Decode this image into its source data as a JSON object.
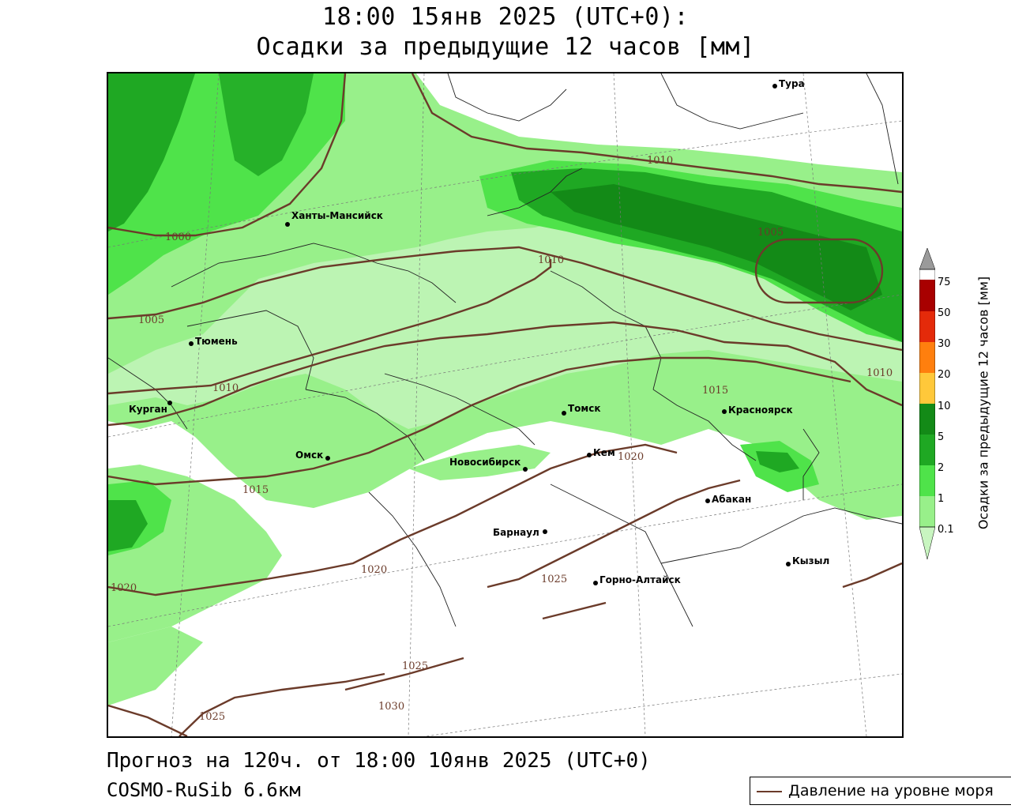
{
  "header": {
    "line1": "18:00 15янв 2025 (UTC+0):",
    "line2": "Осадки за предыдущие 12 часов [мм]"
  },
  "footer": {
    "forecast": "Прогноз на 120ч. от 18:00 10янв 2025 (UTC+0)",
    "model": "COSMO-RuSib 6.6км"
  },
  "legend": {
    "pressure_label": "Давление на уровне моря",
    "pressure_color": "#6b3b2a"
  },
  "colorbar": {
    "title": "Осадки за предыдущие 12 часов [мм]",
    "ticks": [
      "0.1",
      "1",
      "2",
      "5",
      "10",
      "20",
      "30",
      "50",
      "75"
    ],
    "colors": [
      "#c8f5c0",
      "#98f08a",
      "#4fe34a",
      "#1fa823",
      "#138a17",
      "#ffc83a",
      "#ff7f0e",
      "#e42a0a",
      "#a80000",
      "#9a9a9a"
    ]
  },
  "cities": [
    {
      "name": "Тура"
    },
    {
      "name": "Ханты-Мансийск"
    },
    {
      "name": "Тюмень"
    },
    {
      "name": "Курган"
    },
    {
      "name": "Омск"
    },
    {
      "name": "Томск"
    },
    {
      "name": "Красноярск"
    },
    {
      "name": "Новосибирск"
    },
    {
      "name": "Кем"
    },
    {
      "name": "Абакан"
    },
    {
      "name": "Барнаул"
    },
    {
      "name": "Горно-Алтайск"
    },
    {
      "name": "Кызыл"
    }
  ],
  "isobars": [
    "1000",
    "1005",
    "1005",
    "1010",
    "1010",
    "1010",
    "1010",
    "1015",
    "1015",
    "1020",
    "1020",
    "1020",
    "1025",
    "1025",
    "1025",
    "1030"
  ]
}
